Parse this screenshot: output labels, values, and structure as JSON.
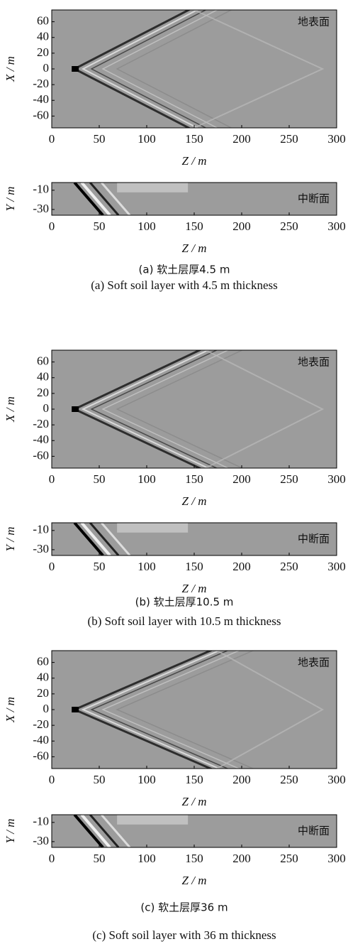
{
  "chart_data": [
    {
      "type": "heatmap",
      "annotation": "地表面",
      "xlabel": "Z / m",
      "ylabel": "X / m",
      "xlim": [
        0,
        300
      ],
      "xticks": [
        0,
        50,
        100,
        150,
        200,
        250,
        300
      ],
      "ylim": [
        -75,
        75
      ],
      "yticks": [
        60,
        40,
        20,
        0,
        -20,
        -40,
        -60
      ]
    },
    {
      "type": "heatmap",
      "annotation": "中断面",
      "xlabel": "Z / m",
      "ylabel": "Y / m",
      "xlim": [
        0,
        300
      ],
      "xticks": [
        0,
        50,
        100,
        150,
        200,
        250,
        300
      ],
      "ylim": [
        -36,
        -2
      ],
      "yticks": [
        -10,
        -30
      ]
    },
    {
      "type": "heatmap",
      "annotation": "地表面",
      "xlabel": "Z / m",
      "ylabel": "X / m",
      "xlim": [
        0,
        300
      ],
      "xticks": [
        0,
        50,
        100,
        150,
        200,
        250,
        300
      ],
      "ylim": [
        -75,
        75
      ],
      "yticks": [
        60,
        40,
        20,
        0,
        -20,
        -40,
        -60
      ]
    },
    {
      "type": "heatmap",
      "annotation": "中断面",
      "xlabel": "Z / m",
      "ylabel": "Y / m",
      "xlim": [
        0,
        300
      ],
      "xticks": [
        0,
        50,
        100,
        150,
        200,
        250,
        300
      ],
      "ylim": [
        -36,
        -2
      ],
      "yticks": [
        -10,
        -30
      ]
    },
    {
      "type": "heatmap",
      "annotation": "地表面",
      "xlabel": "Z / m",
      "ylabel": "X / m",
      "xlim": [
        0,
        300
      ],
      "xticks": [
        0,
        50,
        100,
        150,
        200,
        250,
        300
      ],
      "ylim": [
        -75,
        75
      ],
      "yticks": [
        60,
        40,
        20,
        0,
        -20,
        -40,
        -60
      ]
    },
    {
      "type": "heatmap",
      "annotation": "中断面",
      "xlabel": "Z / m",
      "ylabel": "Y / m",
      "xlim": [
        0,
        300
      ],
      "xticks": [
        0,
        50,
        100,
        150,
        200,
        250,
        300
      ],
      "ylim": [
        -36,
        -2
      ],
      "yticks": [
        -10,
        -30
      ]
    }
  ],
  "captions": [
    {
      "zh": "(a) 软土层厚4.5 m",
      "en": "(a) Soft soil layer with 4.5 m thickness"
    },
    {
      "zh": "(b)  软土层厚10.5 m",
      "en": "(b) Soft soil layer with 10.5 m thickness"
    },
    {
      "zh": "(c)  软土层厚36 m",
      "en": "(c) Soft soil layer with 36 m thickness"
    }
  ]
}
